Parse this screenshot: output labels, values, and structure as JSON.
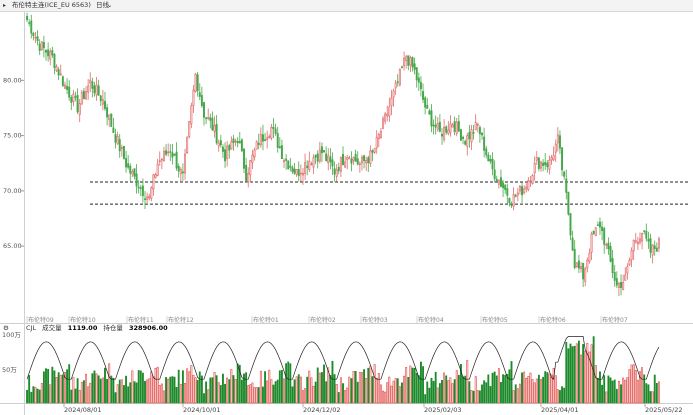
{
  "header": {
    "instrument": "布伦特主连(ICE_EU 6563)",
    "period": "日线",
    "chevron_icon": "chevron-down-icon"
  },
  "volume_panel": {
    "indicator": "CJL",
    "volume_label": "成交量",
    "volume_value": "1119.00",
    "oi_label": "持仓量",
    "oi_value": "328906.00",
    "scale_top": "100万",
    "scale_mid": "50万"
  },
  "colors": {
    "up": "#e0413c",
    "down": "#1c8a2a",
    "up_price": "#e06a6a",
    "down_price": "#45a84a"
  },
  "chart_data": {
    "type": "candlestick",
    "y_ticks": [
      "80.00",
      "75.00",
      "70.00",
      "65.00"
    ],
    "ylim": [
      58.5,
      86.0
    ],
    "x_labels": [
      "2024/08/01",
      "2024/10/01",
      "2024/12/02",
      "2025/02/03",
      "2025/04/01",
      "2025/05/22"
    ],
    "contract_labels": [
      "布伦特09",
      "布伦特10",
      "布伦特11",
      "布伦特12",
      "布伦特01",
      "布伦特02",
      "布伦特03",
      "布伦特04",
      "布伦特05",
      "布伦特06",
      "布伦特07"
    ],
    "horizontal_lines": [
      70.8,
      68.8
    ],
    "close_anchors": [
      [
        0,
        85.5
      ],
      [
        6,
        83.2
      ],
      [
        12,
        82.1
      ],
      [
        18,
        79.5
      ],
      [
        24,
        77.6
      ],
      [
        30,
        79.8
      ],
      [
        36,
        78.2
      ],
      [
        42,
        74.9
      ],
      [
        48,
        72.0
      ],
      [
        54,
        70.3
      ],
      [
        58,
        69.3
      ],
      [
        62,
        72.5
      ],
      [
        68,
        73.8
      ],
      [
        74,
        71.2
      ],
      [
        80,
        80.5
      ],
      [
        84,
        77.0
      ],
      [
        88,
        75.8
      ],
      [
        94,
        73.2
      ],
      [
        100,
        74.8
      ],
      [
        104,
        71.5
      ],
      [
        110,
        74.5
      ],
      [
        116,
        75.7
      ],
      [
        122,
        73.0
      ],
      [
        128,
        71.6
      ],
      [
        134,
        72.8
      ],
      [
        140,
        73.5
      ],
      [
        146,
        71.8
      ],
      [
        152,
        73.4
      ],
      [
        158,
        72.4
      ],
      [
        164,
        73.3
      ],
      [
        170,
        76.5
      ],
      [
        176,
        79.8
      ],
      [
        180,
        82.2
      ],
      [
        184,
        80.8
      ],
      [
        190,
        77.0
      ],
      [
        196,
        75.2
      ],
      [
        202,
        76.2
      ],
      [
        208,
        74.6
      ],
      [
        214,
        75.9
      ],
      [
        220,
        72.2
      ],
      [
        226,
        70.4
      ],
      [
        230,
        69.2
      ],
      [
        236,
        70.3
      ],
      [
        242,
        72.6
      ],
      [
        248,
        72.5
      ],
      [
        252,
        74.6
      ],
      [
        256,
        69.5
      ],
      [
        260,
        63.5
      ],
      [
        264,
        62.3
      ],
      [
        268,
        65.6
      ],
      [
        272,
        67.0
      ],
      [
        276,
        64.2
      ],
      [
        280,
        61.4
      ],
      [
        284,
        62.0
      ],
      [
        288,
        65.4
      ],
      [
        292,
        66.3
      ],
      [
        296,
        64.5
      ],
      [
        300,
        65.2
      ]
    ],
    "volume_scale_max": 100
  }
}
